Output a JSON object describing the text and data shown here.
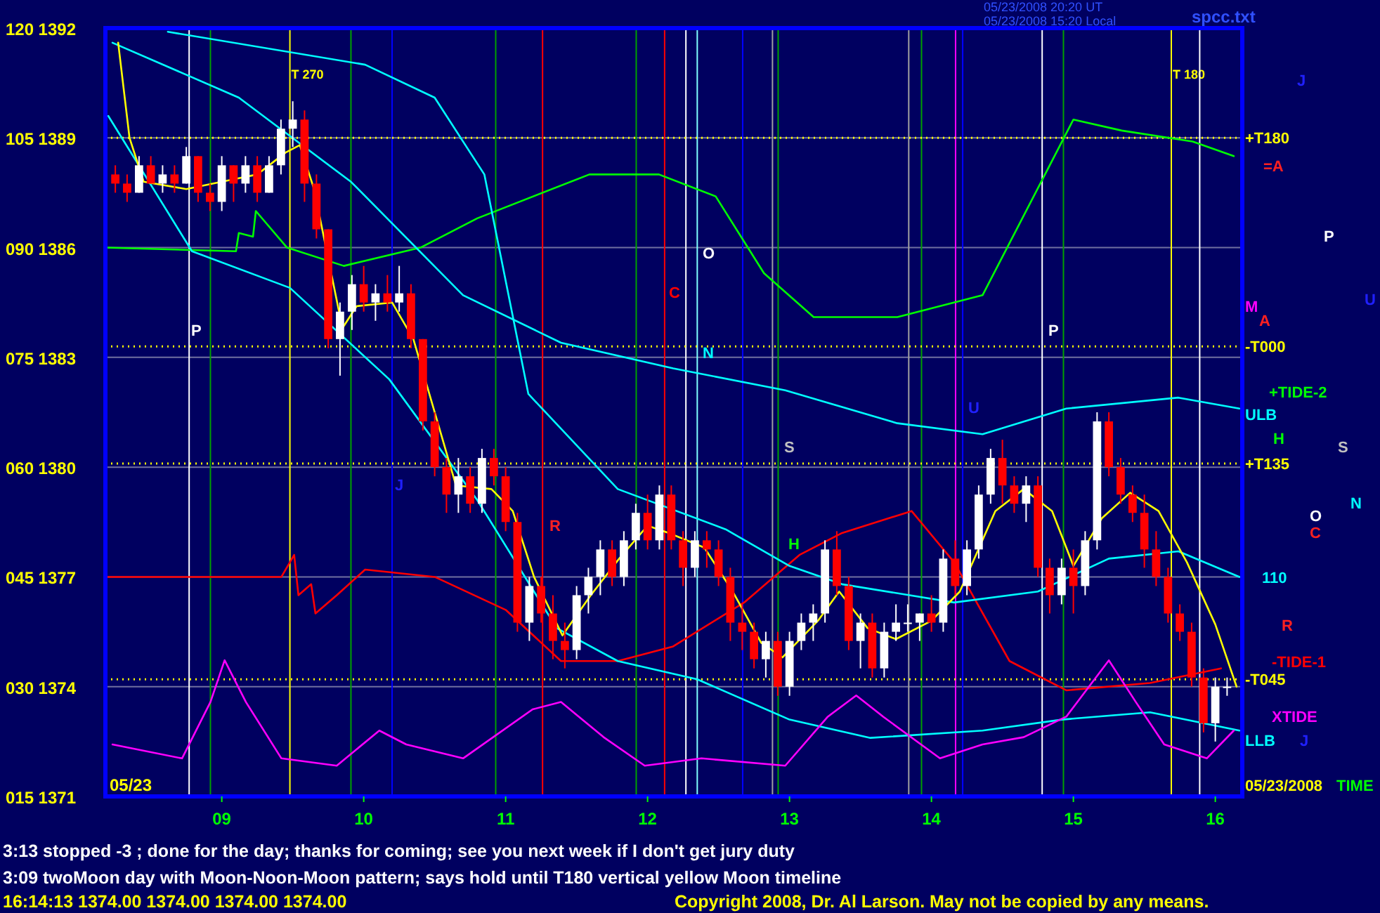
{
  "chart_data": {
    "type": "candlestick",
    "x": [
      8.25,
      8.333,
      8.417,
      8.5,
      8.583,
      8.667,
      8.75,
      8.833,
      8.917,
      9,
      9.083,
      9.167,
      9.25,
      9.333,
      9.417,
      9.5,
      9.583,
      9.667,
      9.75,
      9.833,
      9.917,
      10,
      10.083,
      10.167,
      10.25,
      10.333,
      10.417,
      10.5,
      10.583,
      10.667,
      10.75,
      10.833,
      10.917,
      11,
      11.083,
      11.167,
      11.25,
      11.333,
      11.417,
      11.5,
      11.583,
      11.667,
      11.75,
      11.833,
      11.917,
      12,
      12.083,
      12.167,
      12.25,
      12.333,
      12.417,
      12.5,
      12.583,
      12.667,
      12.75,
      12.833,
      12.917,
      13,
      13.083,
      13.167,
      13.25,
      13.333,
      13.417,
      13.5,
      13.583,
      13.667,
      13.75,
      13.833,
      13.917,
      14,
      14.083,
      14.167,
      14.25,
      14.333,
      14.417,
      14.5,
      14.583,
      14.667,
      14.75,
      14.833,
      14.917,
      15,
      15.083,
      15.167,
      15.25,
      15.333,
      15.417,
      15.5,
      15.583,
      15.667,
      15.75,
      15.833,
      15.917,
      16,
      16.083
    ],
    "ohlc": [
      [
        1388,
        1388.25,
        1387.5,
        1387.75
      ],
      [
        1387.75,
        1388,
        1387.25,
        1387.5
      ],
      [
        1387.5,
        1388.5,
        1387.5,
        1388.25
      ],
      [
        1388.25,
        1388.5,
        1387.75,
        1387.75
      ],
      [
        1387.75,
        1388.25,
        1387.5,
        1388
      ],
      [
        1388,
        1388.25,
        1387.5,
        1387.75
      ],
      [
        1387.75,
        1388.75,
        1387.75,
        1388.5
      ],
      [
        1388.5,
        1388.5,
        1387.25,
        1387.5
      ],
      [
        1387.5,
        1387.75,
        1387,
        1387.25
      ],
      [
        1387.25,
        1388.5,
        1387,
        1388.25
      ],
      [
        1388.25,
        1388.25,
        1387.25,
        1387.75
      ],
      [
        1387.75,
        1388.5,
        1387.5,
        1388.25
      ],
      [
        1388.25,
        1388.5,
        1387.25,
        1387.5
      ],
      [
        1387.5,
        1388.5,
        1387.5,
        1388.25
      ],
      [
        1388.25,
        1389.5,
        1388,
        1389.25
      ],
      [
        1389.25,
        1390,
        1388.75,
        1389.5
      ],
      [
        1389.5,
        1389.75,
        1387.25,
        1387.75
      ],
      [
        1387.75,
        1388,
        1386.25,
        1386.5
      ],
      [
        1386.5,
        1386.5,
        1383.25,
        1383.5
      ],
      [
        1383.5,
        1384.5,
        1382.5,
        1384.25
      ],
      [
        1384.25,
        1385.25,
        1383.75,
        1385
      ],
      [
        1385,
        1385.5,
        1384.25,
        1384.5
      ],
      [
        1384.5,
        1385,
        1384,
        1384.75
      ],
      [
        1384.75,
        1385.25,
        1384.25,
        1384.5
      ],
      [
        1384.5,
        1385.5,
        1384.25,
        1384.75
      ],
      [
        1384.75,
        1385,
        1383.25,
        1383.5
      ],
      [
        1383.5,
        1383.5,
        1381,
        1381.25
      ],
      [
        1381.25,
        1381.5,
        1379.75,
        1380
      ],
      [
        1380,
        1380.25,
        1378.75,
        1379.25
      ],
      [
        1379.25,
        1380.25,
        1378.75,
        1379.75
      ],
      [
        1379.75,
        1380,
        1378.75,
        1379
      ],
      [
        1379,
        1380.5,
        1378.75,
        1380.25
      ],
      [
        1380.25,
        1380.5,
        1379.5,
        1379.75
      ],
      [
        1379.75,
        1380,
        1378.25,
        1378.5
      ],
      [
        1378.5,
        1378.75,
        1375.5,
        1375.75
      ],
      [
        1375.75,
        1377,
        1375.25,
        1376.75
      ],
      [
        1376.75,
        1377,
        1375.75,
        1376
      ],
      [
        1376,
        1376.5,
        1374.75,
        1375.25
      ],
      [
        1375.25,
        1375.75,
        1374.5,
        1375
      ],
      [
        1375,
        1376.75,
        1374.75,
        1376.5
      ],
      [
        1376.5,
        1377.25,
        1376,
        1377
      ],
      [
        1377,
        1378,
        1376.5,
        1377.75
      ],
      [
        1377.75,
        1378,
        1376.75,
        1377
      ],
      [
        1377,
        1378.25,
        1376.75,
        1378
      ],
      [
        1378,
        1379,
        1377.75,
        1378.75
      ],
      [
        1378.75,
        1379.25,
        1377.75,
        1378
      ],
      [
        1378,
        1379.5,
        1377.75,
        1379.25
      ],
      [
        1379.25,
        1379.5,
        1377.75,
        1378
      ],
      [
        1378,
        1378.25,
        1376.75,
        1377.25
      ],
      [
        1377.25,
        1378.25,
        1377,
        1378
      ],
      [
        1378,
        1378.25,
        1377.25,
        1377.75
      ],
      [
        1377.75,
        1378,
        1376.75,
        1377
      ],
      [
        1377,
        1377.25,
        1375.25,
        1375.75
      ],
      [
        1375.75,
        1376.25,
        1375,
        1375.5
      ],
      [
        1375.5,
        1375.75,
        1374.5,
        1374.75
      ],
      [
        1374.75,
        1375.5,
        1374.25,
        1375.25
      ],
      [
        1375.25,
        1375.5,
        1373.75,
        1374
      ],
      [
        1374,
        1375.5,
        1373.75,
        1375.25
      ],
      [
        1375.25,
        1376,
        1375,
        1375.75
      ],
      [
        1375.75,
        1376.25,
        1375.25,
        1376
      ],
      [
        1376,
        1378,
        1375.75,
        1377.75
      ],
      [
        1377.75,
        1378.25,
        1376.5,
        1376.75
      ],
      [
        1376.75,
        1377,
        1375,
        1375.25
      ],
      [
        1375.25,
        1376,
        1374.5,
        1375.75
      ],
      [
        1375.75,
        1376,
        1374.25,
        1374.5
      ],
      [
        1374.5,
        1375.75,
        1374.25,
        1375.5
      ],
      [
        1375.5,
        1376.25,
        1375.25,
        1375.75
      ],
      [
        1375.75,
        1376.25,
        1375.5,
        1375.75
      ],
      [
        1375.75,
        1376,
        1375.25,
        1376
      ],
      [
        1376,
        1376.5,
        1375.5,
        1375.75
      ],
      [
        1375.75,
        1377.75,
        1375.5,
        1377.5
      ],
      [
        1377.5,
        1378,
        1376.5,
        1376.75
      ],
      [
        1376.75,
        1378,
        1376.5,
        1377.75
      ],
      [
        1377.75,
        1379.5,
        1377.5,
        1379.25
      ],
      [
        1379.25,
        1380.5,
        1379,
        1380.25
      ],
      [
        1380.25,
        1380.75,
        1379,
        1379.5
      ],
      [
        1379.5,
        1379.75,
        1378.75,
        1379
      ],
      [
        1379,
        1379.75,
        1378.5,
        1379.5
      ],
      [
        1379.5,
        1379.75,
        1377,
        1377.25
      ],
      [
        1377.25,
        1377.5,
        1376,
        1376.5
      ],
      [
        1376.5,
        1377.5,
        1376.25,
        1377.25
      ],
      [
        1377.25,
        1377.75,
        1376,
        1376.75
      ],
      [
        1376.75,
        1378.25,
        1376.5,
        1378
      ],
      [
        1378,
        1381.5,
        1377.75,
        1381.25
      ],
      [
        1381.25,
        1381.5,
        1379.75,
        1380
      ],
      [
        1380,
        1380.25,
        1379,
        1379.25
      ],
      [
        1379.25,
        1379.5,
        1378.5,
        1378.75
      ],
      [
        1378.75,
        1379.25,
        1377.25,
        1377.75
      ],
      [
        1377.75,
        1378.25,
        1376.75,
        1377
      ],
      [
        1377,
        1377.25,
        1375.75,
        1376
      ],
      [
        1376,
        1376.25,
        1375.25,
        1375.5
      ],
      [
        1375.5,
        1375.75,
        1374,
        1374.25
      ],
      [
        1374.25,
        1374.5,
        1372.75,
        1373
      ],
      [
        1373,
        1374.25,
        1372.5,
        1374
      ],
      [
        1374,
        1374.25,
        1373.75,
        1374
      ]
    ],
    "series": [
      {
        "type": "line",
        "color": "#00ff00",
        "x": [
          8.18,
          9.1,
          9.12,
          9.22,
          9.24,
          9.46,
          9.86,
          10.4,
          10.8,
          11.59,
          12.08,
          12.48,
          12.82,
          13.17,
          13.76,
          14.36,
          14.8,
          15,
          15.34,
          15.84,
          16.13
        ],
        "values": [
          1386,
          1385.9,
          1386.4,
          1386.3,
          1387,
          1386,
          1385.5,
          1386,
          1386.8,
          1388,
          1388,
          1387.4,
          1385.3,
          1384.1,
          1384.1,
          1384.7,
          1388,
          1389.5,
          1389.2,
          1388.9,
          1388.5
        ]
      },
      {
        "type": "line",
        "name": "-TIDE-1",
        "color": "#ff0000",
        "x": [
          8.18,
          9.42,
          9.51,
          9.54,
          9.63,
          9.66,
          9.81,
          10.01,
          10.5,
          11,
          11.39,
          11.79,
          12.18,
          12.68,
          13.07,
          13.37,
          13.86,
          14.16,
          14.55,
          14.95,
          15.54,
          16.04
        ],
        "values": [
          1377,
          1377,
          1377.6,
          1376.5,
          1376.8,
          1376,
          1376.5,
          1377.2,
          1377,
          1376.1,
          1374.7,
          1374.7,
          1375.1,
          1376.3,
          1377.6,
          1378.2,
          1378.8,
          1377.4,
          1374.7,
          1373.9,
          1374.1,
          1374.5
        ]
      },
      {
        "type": "line",
        "name": "ULB",
        "color": "#00ffff",
        "x": [
          8.23,
          9.12,
          9.91,
          10.7,
          11.39,
          12.18,
          12.97,
          13.76,
          14.36,
          14.95,
          15.74,
          16.17
        ],
        "values": [
          1391.6,
          1390.1,
          1387.8,
          1384.7,
          1383.4,
          1382.7,
          1382.1,
          1381.2,
          1380.9,
          1381.6,
          1381.9,
          1381.6
        ]
      },
      {
        "type": "line",
        "name": "110",
        "color": "#00ffff",
        "x": [
          8.62,
          10.01,
          10.5,
          10.85,
          11.16,
          11.79,
          12.55,
          13,
          13.37,
          14.16,
          14.75,
          15.25,
          15.74,
          16.17
        ],
        "values": [
          1391.9,
          1391,
          1390.1,
          1388,
          1382,
          1379.4,
          1378.3,
          1377.3,
          1376.8,
          1376.3,
          1376.6,
          1377.5,
          1377.7,
          1377
        ]
      },
      {
        "type": "line",
        "name": "LLB",
        "color": "#00ffff",
        "x": [
          8.2,
          8.79,
          9.48,
          10.18,
          10.8,
          11.36,
          11.79,
          12.35,
          13,
          13.57,
          14.36,
          14.92,
          15.54,
          16.17
        ],
        "values": [
          1389.6,
          1385.9,
          1384.9,
          1382.4,
          1379.1,
          1375.6,
          1374.7,
          1374.2,
          1373.1,
          1372.6,
          1372.8,
          1373.1,
          1373.3,
          1372.8
        ]
      },
      {
        "type": "line",
        "color": "#ffff00",
        "x": [
          8.27,
          8.35,
          8.45,
          8.75,
          9,
          9.25,
          9.45,
          9.55,
          9.65,
          9.85,
          9.95,
          10.2,
          10.35,
          10.65,
          10.9,
          11.05,
          11.2,
          11.4,
          11.6,
          11.8,
          12,
          12.15,
          12.4,
          12.6,
          12.8,
          12.95,
          13.2,
          13.35,
          13.55,
          13.75,
          14,
          14.2,
          14.45,
          14.65,
          14.85,
          15,
          15.2,
          15.4,
          15.6,
          15.8,
          16,
          16.15
        ],
        "values": [
          1391.6,
          1389,
          1387.8,
          1387.6,
          1387.8,
          1388,
          1388.6,
          1388.8,
          1387.6,
          1383.8,
          1384.4,
          1384.5,
          1383.5,
          1379.5,
          1379.4,
          1378.8,
          1377,
          1375.4,
          1376.5,
          1377.5,
          1378.4,
          1378.2,
          1377.8,
          1376.6,
          1375.2,
          1374.8,
          1375.8,
          1376.6,
          1375.6,
          1375.3,
          1375.8,
          1376.6,
          1378.8,
          1379.4,
          1378.8,
          1377.3,
          1378.6,
          1379.3,
          1378.8,
          1377.4,
          1375.7,
          1374
        ]
      },
      {
        "type": "line",
        "name": "XTIDE",
        "color": "#ff00ff",
        "axis": "y2",
        "x": [
          8.23,
          8.72,
          8.92,
          9.02,
          9.17,
          9.42,
          9.81,
          10.11,
          10.3,
          10.7,
          11.19,
          11.39,
          11.69,
          11.98,
          12.38,
          12.97,
          13.27,
          13.47,
          13.66,
          14.06,
          14.36,
          14.65,
          14.95,
          15.25,
          15.44,
          15.64,
          15.94,
          16.13
        ],
        "values": [
          22.1,
          20.2,
          27.9,
          33.6,
          27.9,
          20.2,
          19.2,
          24,
          22.1,
          20.2,
          26.9,
          27.9,
          23.1,
          19.2,
          20.2,
          19.2,
          25.9,
          28.8,
          25.9,
          20.2,
          22.1,
          23.1,
          25.9,
          33.6,
          27.9,
          22.1,
          20.2,
          24
        ]
      }
    ],
    "xlim": [
      8.18,
      16.19
    ],
    "xticks": [
      {
        "value": 9,
        "label": "09"
      },
      10,
      11,
      12,
      13,
      14,
      15,
      16
    ],
    "ylim": [
      1371,
      1392
    ],
    "yticks": [
      1371,
      1374,
      1377,
      1380,
      1383,
      1386,
      1389,
      1392
    ],
    "y2lim": [
      15,
      120
    ],
    "y2ticks": [
      {
        "value": 15,
        "label": "015"
      },
      {
        "value": 30,
        "label": "030"
      },
      {
        "value": 45,
        "label": "045"
      },
      {
        "value": 60,
        "label": "060"
      },
      {
        "value": 75,
        "label": "075"
      },
      {
        "value": 90,
        "label": "090"
      },
      105,
      120
    ],
    "grid": "y",
    "ref_lines": [
      {
        "axis": "x",
        "value": 8.77,
        "color": "#ffffff"
      },
      {
        "axis": "x",
        "value": 8.92,
        "color": "#00a000"
      },
      {
        "axis": "x",
        "value": 9.48,
        "color": "#ffff00",
        "label": "T 270"
      },
      {
        "axis": "x",
        "value": 9.91,
        "color": "#00a000"
      },
      {
        "axis": "x",
        "value": 10.2,
        "color": "#0000ff"
      },
      {
        "axis": "x",
        "value": 10.93,
        "color": "#00a000"
      },
      {
        "axis": "x",
        "value": 11.26,
        "color": "#ff0000"
      },
      {
        "axis": "x",
        "value": 11.92,
        "color": "#00a000"
      },
      {
        "axis": "x",
        "value": 12.12,
        "color": "#ff0000"
      },
      {
        "axis": "x",
        "value": 12.27,
        "color": "#ffffff"
      },
      {
        "axis": "x",
        "value": 12.35,
        "color": "#80ffff"
      },
      {
        "axis": "x",
        "value": 12.67,
        "color": "#0000ff"
      },
      {
        "axis": "x",
        "value": 12.88,
        "color": "#a0a0a0"
      },
      {
        "axis": "x",
        "value": 12.92,
        "color": "#00a000"
      },
      {
        "axis": "x",
        "value": 13.84,
        "color": "#a0a0a0"
      },
      {
        "axis": "x",
        "value": 13.93,
        "color": "#00a000"
      },
      {
        "axis": "x",
        "value": 14.17,
        "color": "#ff00ff"
      },
      {
        "axis": "x",
        "value": 14.22,
        "color": "#0000ff"
      },
      {
        "axis": "x",
        "value": 14.78,
        "color": "#ffffff"
      },
      {
        "axis": "x",
        "value": 14.93,
        "color": "#00a000"
      },
      {
        "axis": "x",
        "value": 15.69,
        "color": "#ffff00",
        "label": "T 180"
      },
      {
        "axis": "x",
        "value": 15.89,
        "color": "#ffffff"
      },
      {
        "axis": "y",
        "value": 1389,
        "color": "#ffff00",
        "line_style": "dotted",
        "label": "+T180"
      },
      {
        "axis": "y",
        "value": 1383.3,
        "color": "#ffff00",
        "line_style": "dotted",
        "label": "-T000"
      },
      {
        "axis": "y",
        "value": 1380.1,
        "color": "#ffff00",
        "line_style": "dotted",
        "label": "+T135"
      },
      {
        "axis": "y",
        "value": 1374.2,
        "color": "#ffff00",
        "line_style": "dotted",
        "label": "-T045"
      }
    ],
    "annotations": [
      "05/23/2008 20:20 UT",
      "05/23/2008 15:20 Local",
      "spcc.txt",
      "3:13 stopped -3 ; done for the day; thanks for coming; see you next week if I don't get jury duty",
      "3:09 twoMoon day with Moon-Noon-Moon pattern; says hold until T180 vertical yellow Moon timeline",
      "16:14:13  1374.00 1374.00 1374.00 1374.00",
      "Copyright 2008, Dr. Al Larson. May not be copied by any means.",
      "05/23",
      "05/23/2008",
      "TIME",
      "P",
      "O",
      "C",
      "N",
      "S",
      "R",
      "H",
      "U",
      "J",
      "P",
      "J",
      "=A",
      "P",
      "U",
      "M",
      "A",
      "+TIDE-2",
      "H",
      "S",
      "N",
      "O",
      "C",
      "R",
      "J"
    ]
  }
}
